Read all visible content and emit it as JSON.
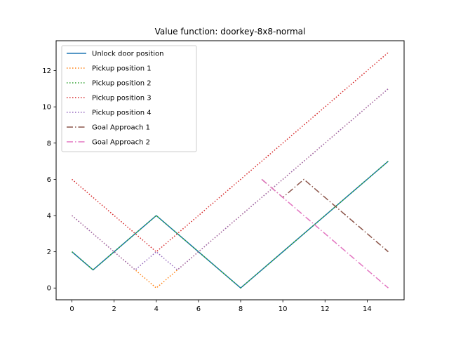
{
  "chart_data": {
    "type": "line",
    "title": "Value function: doorkey-8x8-normal",
    "xlabel": "",
    "ylabel": "",
    "xlim": [
      -0.75,
      15.75
    ],
    "ylim": [
      -0.65,
      13.65
    ],
    "xticks": [
      0,
      2,
      4,
      6,
      8,
      10,
      12,
      14
    ],
    "yticks": [
      0,
      2,
      4,
      6,
      8,
      10,
      12
    ],
    "grid": false,
    "legend_position": "top-left",
    "series": [
      {
        "name": "Unlock door position",
        "color": "#1f77b4",
        "style": "solid",
        "x": [
          0,
          1,
          2,
          3,
          4,
          5,
          6,
          7,
          8,
          9,
          10,
          11,
          12,
          13,
          14,
          15
        ],
        "y": [
          2,
          1,
          2,
          3,
          4,
          3,
          2,
          1,
          0,
          1,
          2,
          3,
          4,
          5,
          6,
          7
        ]
      },
      {
        "name": "Pickup position 1",
        "color": "#ff7f0e",
        "style": "dotted",
        "x": [
          0,
          1,
          2,
          3,
          4,
          5,
          6,
          7,
          8,
          9,
          10,
          11,
          12,
          13,
          14,
          15
        ],
        "y": [
          4,
          3,
          2,
          1,
          0,
          1,
          2,
          3,
          4,
          5,
          6,
          7,
          8,
          9,
          10,
          11
        ]
      },
      {
        "name": "Pickup position 2",
        "color": "#2ca02c",
        "style": "dotted",
        "x": [
          0,
          1,
          2,
          3,
          4,
          5,
          6,
          7,
          8,
          9,
          10,
          11,
          12,
          13,
          14,
          15
        ],
        "y": [
          2,
          1,
          2,
          3,
          4,
          3,
          2,
          1,
          0,
          1,
          2,
          3,
          4,
          5,
          6,
          7
        ]
      },
      {
        "name": "Pickup position 3",
        "color": "#d62728",
        "style": "dotted",
        "x": [
          0,
          1,
          2,
          3,
          4,
          5,
          6,
          7,
          8,
          9,
          10,
          11,
          12,
          13,
          14,
          15
        ],
        "y": [
          6,
          5,
          4,
          3,
          2,
          3,
          4,
          5,
          6,
          7,
          8,
          9,
          10,
          11,
          12,
          13
        ]
      },
      {
        "name": "Pickup position 4",
        "color": "#9467bd",
        "style": "dotted",
        "x": [
          0,
          1,
          2,
          3,
          4,
          5,
          6,
          7,
          8,
          9,
          10,
          11,
          12,
          13,
          14,
          15
        ],
        "y": [
          4,
          3,
          2,
          1,
          2,
          1,
          2,
          3,
          4,
          5,
          6,
          7,
          8,
          9,
          10,
          11
        ]
      },
      {
        "name": "Goal Approach 1",
        "color": "#8c564b",
        "style": "dashdot",
        "x": [
          9,
          10,
          11,
          12,
          13,
          14,
          15
        ],
        "y": [
          6,
          5,
          6,
          5,
          4,
          3,
          2
        ]
      },
      {
        "name": "Goal Approach 2",
        "color": "#e377c2",
        "style": "dashdot",
        "x": [
          9,
          10,
          11,
          12,
          13,
          14,
          15
        ],
        "y": [
          6,
          5,
          4,
          3,
          2,
          1,
          0
        ]
      }
    ]
  }
}
